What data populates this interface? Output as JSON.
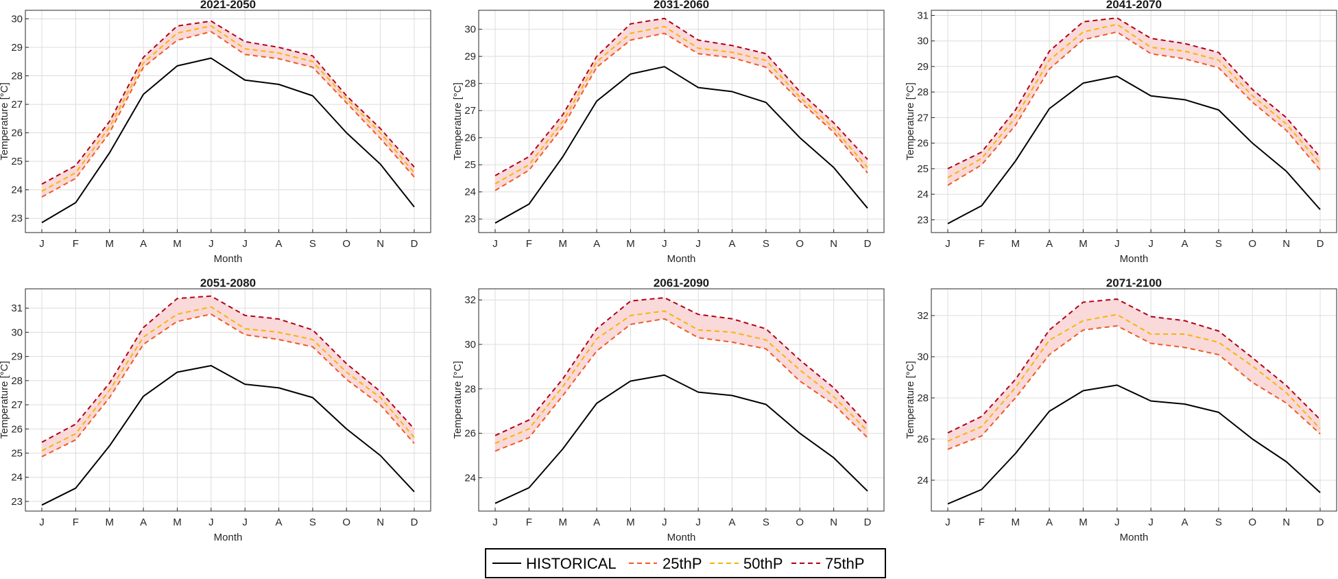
{
  "chart_data": [
    {
      "type": "line",
      "title": "2021-2050",
      "xlabel": "Month",
      "ylabel": "Temperature [°C]",
      "categories": [
        "J",
        "F",
        "M",
        "A",
        "M",
        "J",
        "J",
        "A",
        "S",
        "O",
        "N",
        "D"
      ],
      "ylim": [
        22.5,
        30.3
      ],
      "yticks": [
        23,
        24,
        25,
        26,
        27,
        28,
        29,
        30
      ],
      "grid": true,
      "series": [
        {
          "name": "HISTORICAL",
          "values": [
            22.85,
            23.55,
            25.3,
            27.35,
            28.35,
            28.62,
            27.85,
            27.7,
            27.3,
            26.0,
            24.9,
            23.4
          ]
        },
        {
          "name": "25thP",
          "values": [
            23.75,
            24.4,
            26.0,
            28.3,
            29.25,
            29.55,
            28.75,
            28.6,
            28.3,
            27.05,
            25.8,
            24.45
          ]
        },
        {
          "name": "50thP",
          "values": [
            23.95,
            24.6,
            26.2,
            28.45,
            29.5,
            29.75,
            28.95,
            28.8,
            28.5,
            27.2,
            26.0,
            24.6
          ]
        },
        {
          "name": "75thP",
          "values": [
            24.2,
            24.85,
            26.4,
            28.65,
            29.75,
            29.92,
            29.2,
            29.0,
            28.7,
            27.3,
            26.15,
            24.8
          ]
        }
      ]
    },
    {
      "type": "line",
      "title": "2031-2060",
      "xlabel": "Month",
      "ylabel": "Temperature [°C]",
      "categories": [
        "J",
        "F",
        "M",
        "A",
        "M",
        "J",
        "J",
        "A",
        "S",
        "O",
        "N",
        "D"
      ],
      "ylim": [
        22.5,
        30.7
      ],
      "yticks": [
        23,
        24,
        25,
        26,
        27,
        28,
        29,
        30
      ],
      "grid": true,
      "series": [
        {
          "name": "HISTORICAL",
          "values": [
            22.85,
            23.55,
            25.3,
            27.35,
            28.35,
            28.62,
            27.85,
            27.7,
            27.3,
            26.0,
            24.9,
            23.4
          ]
        },
        {
          "name": "25thP",
          "values": [
            24.05,
            24.8,
            26.4,
            28.6,
            29.6,
            29.85,
            29.1,
            28.95,
            28.6,
            27.35,
            26.2,
            24.7
          ]
        },
        {
          "name": "50thP",
          "values": [
            24.3,
            25.0,
            26.6,
            28.8,
            29.85,
            30.1,
            29.3,
            29.15,
            28.85,
            27.5,
            26.35,
            24.9
          ]
        },
        {
          "name": "75thP",
          "values": [
            24.6,
            25.3,
            26.85,
            29.0,
            30.2,
            30.4,
            29.6,
            29.4,
            29.1,
            27.7,
            26.55,
            25.2
          ]
        }
      ]
    },
    {
      "type": "line",
      "title": "2041-2070",
      "xlabel": "Month",
      "ylabel": "Temperature [°C]",
      "categories": [
        "J",
        "F",
        "M",
        "A",
        "M",
        "J",
        "J",
        "A",
        "S",
        "O",
        "N",
        "D"
      ],
      "ylim": [
        22.5,
        31.2
      ],
      "yticks": [
        23,
        24,
        25,
        26,
        27,
        28,
        29,
        30,
        31
      ],
      "grid": true,
      "series": [
        {
          "name": "HISTORICAL",
          "values": [
            22.85,
            23.55,
            25.3,
            27.35,
            28.35,
            28.62,
            27.85,
            27.7,
            27.3,
            26.0,
            24.9,
            23.4
          ]
        },
        {
          "name": "25thP",
          "values": [
            24.35,
            25.15,
            26.7,
            28.9,
            30.05,
            30.35,
            29.5,
            29.3,
            28.95,
            27.6,
            26.5,
            24.95
          ]
        },
        {
          "name": "50thP",
          "values": [
            24.65,
            25.4,
            27.0,
            29.25,
            30.35,
            30.65,
            29.75,
            29.6,
            29.25,
            27.85,
            26.75,
            25.2
          ]
        },
        {
          "name": "75thP",
          "values": [
            25.0,
            25.65,
            27.3,
            29.6,
            30.75,
            30.9,
            30.1,
            29.9,
            29.55,
            28.1,
            27.0,
            25.45
          ]
        }
      ]
    },
    {
      "type": "line",
      "title": "2051-2080",
      "xlabel": "Month",
      "ylabel": "Temperature [°C]",
      "categories": [
        "J",
        "F",
        "M",
        "A",
        "M",
        "J",
        "J",
        "A",
        "S",
        "O",
        "N",
        "D"
      ],
      "ylim": [
        22.6,
        31.8
      ],
      "yticks": [
        23,
        24,
        25,
        26,
        27,
        28,
        29,
        30,
        31
      ],
      "grid": true,
      "series": [
        {
          "name": "HISTORICAL",
          "values": [
            22.85,
            23.55,
            25.3,
            27.35,
            28.35,
            28.62,
            27.85,
            27.7,
            27.3,
            26.0,
            24.9,
            23.4
          ]
        },
        {
          "name": "25thP",
          "values": [
            24.85,
            25.55,
            27.3,
            29.5,
            30.45,
            30.75,
            29.9,
            29.7,
            29.4,
            28.05,
            27.0,
            25.4
          ]
        },
        {
          "name": "50thP",
          "values": [
            25.1,
            25.8,
            27.6,
            29.8,
            30.75,
            31.05,
            30.15,
            30.0,
            29.7,
            28.35,
            27.3,
            25.65
          ]
        },
        {
          "name": "75thP",
          "values": [
            25.45,
            26.2,
            27.9,
            30.2,
            31.4,
            31.5,
            30.7,
            30.55,
            30.1,
            28.7,
            27.55,
            26.0
          ]
        }
      ]
    },
    {
      "type": "line",
      "title": "2061-2090",
      "xlabel": "Month",
      "ylabel": "Temperature [°C]",
      "categories": [
        "J",
        "F",
        "M",
        "A",
        "M",
        "J",
        "J",
        "A",
        "S",
        "O",
        "N",
        "D"
      ],
      "ylim": [
        22.5,
        32.5
      ],
      "yticks": [
        24,
        26,
        28,
        30,
        32
      ],
      "grid": true,
      "series": [
        {
          "name": "HISTORICAL",
          "values": [
            22.85,
            23.55,
            25.3,
            27.35,
            28.35,
            28.62,
            27.85,
            27.7,
            27.3,
            26.0,
            24.9,
            23.4
          ]
        },
        {
          "name": "25thP",
          "values": [
            25.2,
            25.8,
            27.7,
            29.7,
            30.9,
            31.15,
            30.3,
            30.1,
            29.8,
            28.35,
            27.3,
            25.8
          ]
        },
        {
          "name": "50thP",
          "values": [
            25.55,
            26.2,
            28.1,
            30.25,
            31.3,
            31.5,
            30.65,
            30.55,
            30.2,
            28.85,
            27.65,
            26.1
          ]
        },
        {
          "name": "75thP",
          "values": [
            25.9,
            26.6,
            28.45,
            30.7,
            31.95,
            32.1,
            31.35,
            31.15,
            30.7,
            29.3,
            28.05,
            26.4
          ]
        }
      ]
    },
    {
      "type": "line",
      "title": "2071-2100",
      "xlabel": "Month",
      "ylabel": "Temperature [°C]",
      "categories": [
        "J",
        "F",
        "M",
        "A",
        "M",
        "J",
        "J",
        "A",
        "S",
        "O",
        "N",
        "D"
      ],
      "ylim": [
        22.5,
        33.3
      ],
      "yticks": [
        24,
        26,
        28,
        30,
        32
      ],
      "grid": true,
      "series": [
        {
          "name": "HISTORICAL",
          "values": [
            22.85,
            23.55,
            25.3,
            27.35,
            28.35,
            28.62,
            27.85,
            27.7,
            27.3,
            26.0,
            24.9,
            23.4
          ]
        },
        {
          "name": "25thP",
          "values": [
            25.5,
            26.15,
            28.0,
            30.1,
            31.3,
            31.5,
            30.65,
            30.45,
            30.1,
            28.75,
            27.75,
            26.25
          ]
        },
        {
          "name": "50thP",
          "values": [
            25.9,
            26.6,
            28.5,
            30.8,
            31.75,
            32.05,
            31.1,
            31.1,
            30.7,
            29.55,
            28.25,
            26.5
          ]
        },
        {
          "name": "75thP",
          "values": [
            26.3,
            27.1,
            28.9,
            31.3,
            32.65,
            32.8,
            31.95,
            31.75,
            31.25,
            29.95,
            28.6,
            26.95
          ]
        }
      ]
    }
  ],
  "legend": {
    "placement": "bottom-center",
    "entries": [
      {
        "label": "HISTORICAL",
        "color": "#000000",
        "dash": "solid"
      },
      {
        "label": "25thP",
        "color": "#f05a22",
        "dash": "dashed"
      },
      {
        "label": "50thP",
        "color": "#f7b500",
        "dash": "dashed"
      },
      {
        "label": "75thP",
        "color": "#b0001a",
        "dash": "dashed"
      }
    ]
  },
  "colors": {
    "historical": "#000000",
    "p25": "#f05a22",
    "p50": "#f7b500",
    "p75": "#b0001a",
    "band_fill": "#f9d9d9",
    "grid": "#dcdcdc",
    "axis": "#262626"
  }
}
